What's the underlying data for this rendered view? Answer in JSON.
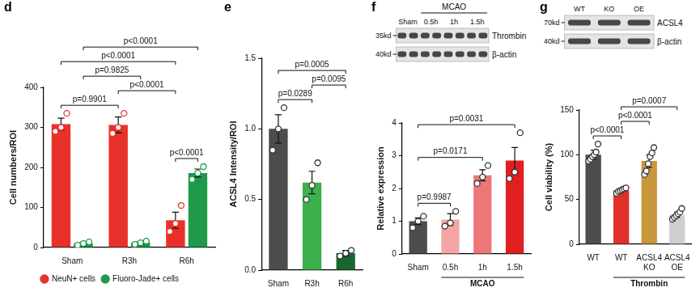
{
  "chart_data": [
    {
      "panel": "d",
      "type": "bar",
      "categories": [
        "Sham",
        "R3h",
        "R6h"
      ],
      "y_label": "Cell numbers/ROI",
      "ylim": [
        0,
        400
      ],
      "yticks": [
        0,
        100,
        200,
        300,
        400
      ],
      "grid": false,
      "legend": "bottom",
      "series": [
        {
          "name": "NeuN+ cells",
          "color": "#e8312b",
          "values": [
            308,
            306,
            68
          ],
          "errors": [
            15,
            20,
            20
          ],
          "points": [
            [
              290,
              300,
              335
            ],
            [
              285,
              300,
              335
            ],
            [
              40,
              60,
              105
            ]
          ]
        },
        {
          "name": "Fluoro-Jade+ cells",
          "color": "#1f9a4a",
          "values": [
            10,
            12,
            186
          ],
          "errors": [
            3,
            3,
            10
          ],
          "points": [
            [
              6,
              10,
              14
            ],
            [
              8,
              12,
              16
            ],
            [
              170,
              186,
              202
            ]
          ]
        }
      ],
      "annotations": [
        {
          "text": "p<0.0001",
          "from": [
            0,
            0
          ],
          "to": [
            2,
            0
          ]
        },
        {
          "text": "p<0.0001",
          "from": [
            0,
            1
          ],
          "to": [
            2,
            1
          ]
        },
        {
          "text": "p=0.9901",
          "from": [
            0,
            0
          ],
          "to": [
            1,
            0
          ]
        },
        {
          "text": "p<0.0001",
          "from": [
            1,
            0
          ],
          "to": [
            2,
            0
          ]
        },
        {
          "text": "p=0.9825",
          "from": [
            0,
            1
          ],
          "to": [
            1,
            1
          ]
        },
        {
          "text": "p<0.0001",
          "from": [
            2,
            0
          ],
          "to": [
            2,
            1
          ]
        }
      ]
    },
    {
      "panel": "e",
      "type": "bar",
      "categories": [
        "Sham",
        "R3h",
        "R6h"
      ],
      "y_label": "ACSL4 Intensity/ROI",
      "ylim": [
        0,
        1.5
      ],
      "yticks": [
        {
          "value": 0,
          "label": "0.0"
        },
        0.5,
        {
          "value": 1,
          "label": "1.0"
        },
        1.5
      ],
      "grid": false,
      "series": [
        {
          "colors": [
            "#4d4d4d",
            "#3cb04a",
            "#1a6630"
          ],
          "values": [
            1.0,
            0.62,
            0.12
          ],
          "errors": [
            0.1,
            0.08,
            0.02
          ],
          "points": [
            [
              0.85,
              1.0,
              1.15
            ],
            [
              0.5,
              0.6,
              0.76
            ],
            [
              0.1,
              0.12,
              0.14
            ]
          ]
        }
      ],
      "annotations": [
        {
          "text": "p=0.0005",
          "from": 0,
          "to": 2
        },
        {
          "text": "p=0.0289",
          "from": 0,
          "to": 1
        },
        {
          "text": "p=0.0095",
          "from": 1,
          "to": 2
        }
      ]
    },
    {
      "panel": "f",
      "type": "bar",
      "categories": [
        "Sham",
        "0.5h",
        "1h",
        "1.5h"
      ],
      "y_label": "Relative expression",
      "ylim": [
        0,
        4
      ],
      "yticks": [
        0,
        1,
        2,
        3,
        4
      ],
      "grid": false,
      "group_label": {
        "text": "MCAO",
        "from": 1,
        "to": 3
      },
      "blot": {
        "columns": [
          "Sham",
          "0.5h",
          "1h",
          "1.5h"
        ],
        "group": {
          "text": "MCAO",
          "from": 1,
          "to": 3
        },
        "rows": [
          {
            "size_label": "35kd",
            "name": "Thrombin"
          },
          {
            "size_label": "40kd",
            "name": "β-actin"
          }
        ]
      },
      "series": [
        {
          "colors": [
            "#4d4d4d",
            "#f4a6a6",
            "#ee7676",
            "#e02020"
          ],
          "values": [
            1.0,
            1.05,
            2.4,
            2.85
          ],
          "errors": [
            0.1,
            0.18,
            0.17,
            0.4
          ],
          "points": [
            [
              0.8,
              1.0,
              1.15
            ],
            [
              0.85,
              0.95,
              1.3
            ],
            [
              2.15,
              2.35,
              2.7
            ],
            [
              2.3,
              2.5,
              3.7
            ]
          ]
        }
      ],
      "annotations": [
        {
          "text": "p=0.0031",
          "from": 0,
          "to": 3
        },
        {
          "text": "p=0.0171",
          "from": 0,
          "to": 2
        },
        {
          "text": "p=0.9987",
          "from": 0,
          "to": 1
        }
      ]
    },
    {
      "panel": "g",
      "type": "bar",
      "categories": [
        "WT",
        "WT",
        "ACSL4 KO",
        "ACSL4 OE"
      ],
      "y_label": "Cell viability (%)",
      "ylim": [
        0,
        150
      ],
      "yticks": [
        0,
        50,
        100,
        150
      ],
      "grid": false,
      "group_label": {
        "text": "Thrombin",
        "from": 1,
        "to": 3
      },
      "blot": {
        "columns": [
          "WT",
          "KO",
          "OE"
        ],
        "rows": [
          {
            "size_label": "70kd",
            "name": "ACSL4"
          },
          {
            "size_label": "40kd",
            "name": "β-actin"
          }
        ]
      },
      "series": [
        {
          "colors": [
            "#4d4d4d",
            "#e0302a",
            "#c8963c",
            "#cfcfcf"
          ],
          "values": [
            100,
            60,
            93,
            33
          ],
          "errors": [
            5,
            2,
            7,
            3
          ],
          "points": [
            [
              93,
              95,
              98,
              100,
              103,
              112
            ],
            [
              57,
              59,
              60,
              61,
              62,
              63
            ],
            [
              78,
              82,
              90,
              98,
              102,
              108
            ],
            [
              28,
              30,
              32,
              34,
              36,
              40
            ]
          ]
        }
      ],
      "annotations": [
        {
          "text": "p<0.0001",
          "from": 0,
          "to": 1
        },
        {
          "text": "p=0.0007",
          "from": 1,
          "to": 3
        },
        {
          "text": "p<0.0001",
          "from": 1,
          "to": 2
        }
      ]
    }
  ]
}
